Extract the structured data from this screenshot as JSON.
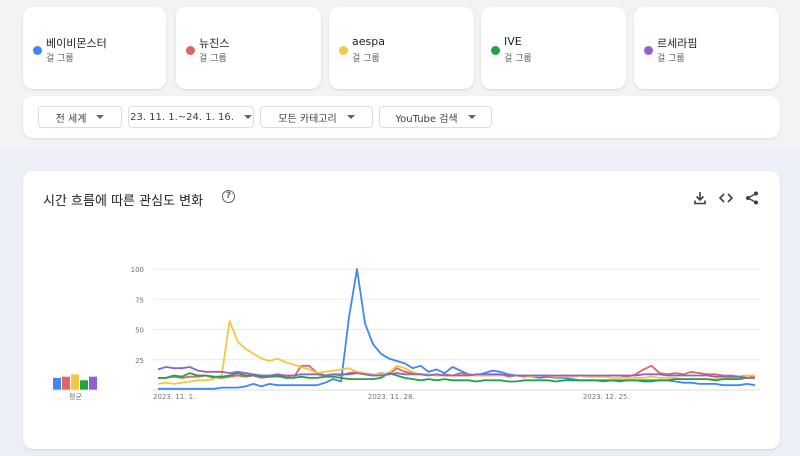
{
  "terms": [
    {
      "name": "베이비몬스터",
      "sub": "걸 그룹",
      "color": "#4285f4"
    },
    {
      "name": "뉴진스",
      "sub": "걸 그룹",
      "color": "#e06666"
    },
    {
      "name": "aespa",
      "sub": "걸 그룹",
      "color": "#f5c842"
    },
    {
      "name": "IVE",
      "sub": "걸 그룹",
      "color": "#1ea446"
    },
    {
      "name": "르세라핌",
      "sub": "걸 그룹",
      "color": "#8e63ce"
    }
  ],
  "filters": {
    "region": "전 세계",
    "period": "23. 11. 1.~24. 1. 16.",
    "category": "모든 카테고리",
    "search_type": "YouTube 검색"
  },
  "chart_title": "시간 흐름에 따른 관심도 변화",
  "icons": {
    "help": "help-circle-icon",
    "download": "download-icon",
    "embed": "code-embed-icon",
    "share": "share-icon"
  },
  "chart_data": {
    "type": "line",
    "ylim": [
      0,
      100
    ],
    "yticks": [
      25,
      50,
      75,
      100
    ],
    "x_tick_labels": [
      {
        "index": 0,
        "label": "2023. 11. 1."
      },
      {
        "index": 27,
        "label": "2023. 11. 28."
      },
      {
        "index": 54,
        "label": "2023. 12. 25."
      }
    ],
    "average_label": "평균",
    "averages": [
      10,
      11,
      13,
      8,
      11
    ],
    "series": [
      {
        "name": "베이비몬스터",
        "color": "#4285f4",
        "values": [
          1,
          1,
          1,
          1,
          1,
          1,
          1,
          1,
          2,
          2,
          2,
          3,
          5,
          3,
          5,
          4,
          4,
          4,
          4,
          4,
          4,
          6,
          9,
          7,
          60,
          100,
          55,
          38,
          30,
          26,
          24,
          22,
          18,
          20,
          15,
          17,
          14,
          19,
          16,
          13,
          12,
          14,
          16,
          15,
          13,
          12,
          12,
          11,
          10,
          11,
          10,
          10,
          9,
          8,
          8,
          8,
          7,
          8,
          7,
          8,
          8,
          7,
          7,
          8,
          8,
          7,
          6,
          6,
          5,
          5,
          5,
          4,
          4,
          4,
          5,
          4
        ]
      },
      {
        "name": "뉴진스",
        "color": "#e06666",
        "values": [
          10,
          10,
          11,
          10,
          11,
          11,
          12,
          10,
          10,
          11,
          12,
          11,
          12,
          10,
          11,
          11,
          11,
          10,
          20,
          20,
          14,
          12,
          13,
          12,
          14,
          15,
          13,
          12,
          14,
          13,
          18,
          15,
          14,
          13,
          13,
          12,
          13,
          12,
          14,
          13,
          12,
          12,
          12,
          13,
          11,
          12,
          11,
          12,
          12,
          11,
          11,
          12,
          11,
          12,
          11,
          11,
          11,
          12,
          12,
          11,
          13,
          17,
          20,
          14,
          13,
          14,
          13,
          15,
          14,
          13,
          13,
          12,
          12,
          11,
          12,
          11
        ]
      },
      {
        "name": "aespa",
        "color": "#f5c842",
        "values": [
          5,
          6,
          5,
          6,
          7,
          8,
          8,
          9,
          12,
          57,
          40,
          34,
          30,
          26,
          24,
          26,
          23,
          21,
          19,
          17,
          14,
          15,
          16,
          17,
          18,
          15,
          14,
          13,
          13,
          14,
          20,
          18,
          15,
          13,
          13,
          12,
          12,
          12,
          12,
          12,
          12,
          12,
          12,
          12,
          12,
          12,
          12,
          11,
          12,
          12,
          11,
          11,
          11,
          12,
          11,
          11,
          11,
          10,
          10,
          10,
          10,
          10,
          11,
          10,
          10,
          10,
          9,
          9,
          9,
          9,
          9,
          9,
          10,
          10,
          12,
          12
        ]
      },
      {
        "name": "IVE",
        "color": "#1ea446",
        "values": [
          10,
          10,
          12,
          11,
          14,
          12,
          12,
          11,
          11,
          12,
          14,
          12,
          12,
          11,
          11,
          12,
          10,
          10,
          11,
          10,
          10,
          11,
          11,
          10,
          9,
          9,
          9,
          9,
          10,
          14,
          12,
          10,
          9,
          8,
          9,
          8,
          9,
          8,
          8,
          8,
          7,
          8,
          8,
          8,
          7,
          7,
          8,
          8,
          8,
          8,
          7,
          8,
          8,
          8,
          8,
          8,
          8,
          8,
          8,
          8,
          8,
          8,
          8,
          8,
          8,
          9,
          9,
          9,
          9,
          9,
          8,
          9,
          9,
          9,
          10,
          10
        ]
      },
      {
        "name": "르세라핌",
        "color": "#8e63ce",
        "values": [
          17,
          19,
          18,
          18,
          19,
          16,
          15,
          15,
          15,
          14,
          15,
          14,
          13,
          12,
          12,
          13,
          12,
          12,
          13,
          13,
          13,
          12,
          13,
          13,
          13,
          14,
          13,
          12,
          12,
          13,
          14,
          13,
          13,
          13,
          12,
          13,
          12,
          12,
          12,
          12,
          13,
          13,
          13,
          13,
          12,
          12,
          12,
          12,
          12,
          12,
          12,
          12,
          12,
          12,
          12,
          12,
          12,
          12,
          12,
          12,
          12,
          13,
          13,
          13,
          12,
          12,
          12,
          12,
          12,
          12,
          11,
          11,
          11,
          11,
          10,
          10
        ]
      }
    ]
  }
}
